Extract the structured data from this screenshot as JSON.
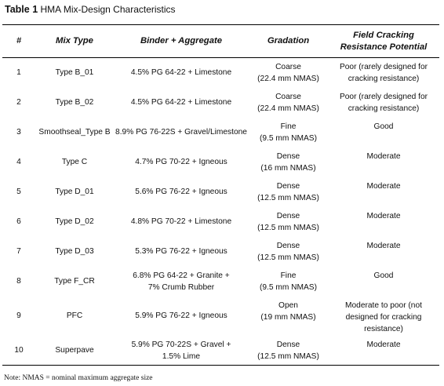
{
  "caption": {
    "number": "Table 1",
    "title": "HMA Mix-Design Characteristics"
  },
  "table": {
    "headers": {
      "num": "#",
      "mix_type": "Mix Type",
      "binder": "Binder + Aggregate",
      "gradation": "Gradation",
      "cracking": "Field Cracking\nResistance Potential"
    },
    "rows": [
      {
        "num": "1",
        "mix_type": "Type B_01",
        "binder": "4.5% PG 64-22 + Limestone",
        "gradation": "Coarse\n(22.4 mm NMAS)",
        "cracking": "Poor (rarely designed for\ncracking resistance)"
      },
      {
        "num": "2",
        "mix_type": "Type B_02",
        "binder": "4.5% PG 64-22 + Limestone",
        "gradation": "Coarse\n(22.4 mm NMAS)",
        "cracking": "Poor (rarely designed for\ncracking resistance)"
      },
      {
        "num": "3",
        "mix_type": "Smoothseal_Type B",
        "binder": "8.9% PG 76-22S + Gravel/Limestone",
        "gradation": "Fine\n(9.5 mm NMAS)",
        "cracking": "Good"
      },
      {
        "num": "4",
        "mix_type": "Type C",
        "binder": "4.7% PG 70-22 + Igneous",
        "gradation": "Dense\n(16 mm NMAS)",
        "cracking": "Moderate"
      },
      {
        "num": "5",
        "mix_type": "Type D_01",
        "binder": "5.6% PG 76-22 + Igneous",
        "gradation": "Dense\n(12.5 mm NMAS)",
        "cracking": "Moderate"
      },
      {
        "num": "6",
        "mix_type": "Type D_02",
        "binder": "4.8% PG 70-22 + Limestone",
        "gradation": "Dense\n(12.5 mm NMAS)",
        "cracking": "Moderate"
      },
      {
        "num": "7",
        "mix_type": "Type D_03",
        "binder": "5.3% PG 76-22 + Igneous",
        "gradation": "Dense\n(12.5 mm NMAS)",
        "cracking": "Moderate"
      },
      {
        "num": "8",
        "mix_type": "Type F_CR",
        "binder": "6.8% PG 64-22 + Granite +\n7% Crumb Rubber",
        "gradation": "Fine\n(9.5 mm NMAS)",
        "cracking": "Good"
      },
      {
        "num": "9",
        "mix_type": "PFC",
        "binder": "5.9% PG 76-22 + Igneous",
        "gradation": "Open\n(19 mm NMAS)",
        "cracking": "Moderate to poor (not\ndesigned for cracking\nresistance)"
      },
      {
        "num": "10",
        "mix_type": "Superpave",
        "binder": "5.9% PG 70-22S + Gravel +\n1.5% Lime",
        "gradation": "Dense\n(12.5 mm NMAS)",
        "cracking": "Moderate"
      }
    ]
  },
  "note": "Note: NMAS = nominal maximum aggregate size"
}
